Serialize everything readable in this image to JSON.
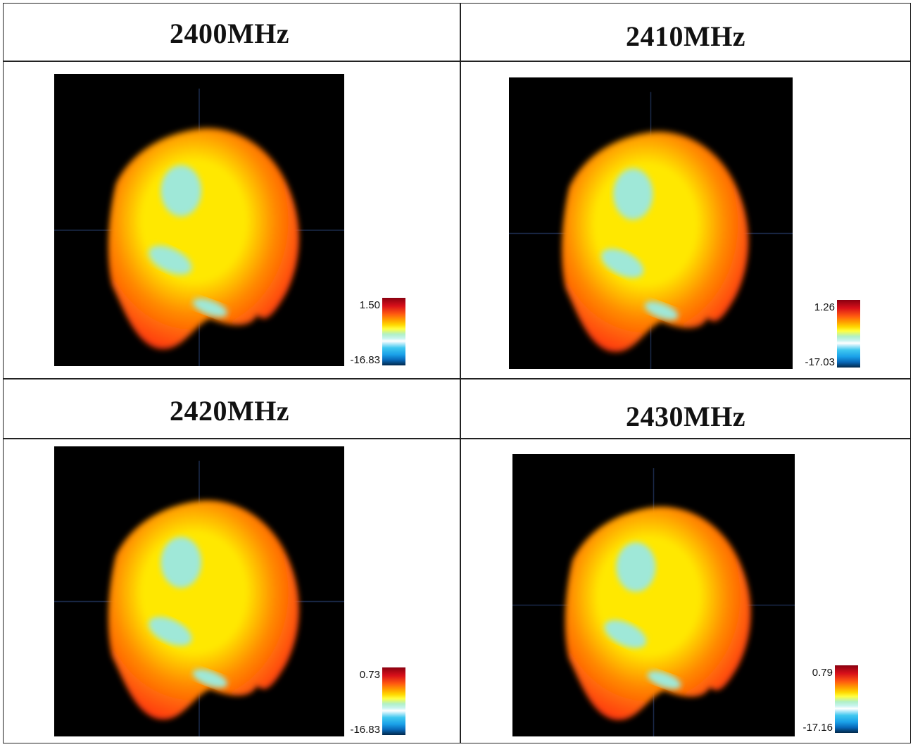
{
  "panels": [
    {
      "title": "2400MHz",
      "max": "1.50",
      "min": "-16.83"
    },
    {
      "title": "2410MHz",
      "max": "1.26",
      "min": "-17.03"
    },
    {
      "title": "2420MHz",
      "max": "0.73",
      "min": "-16.83"
    },
    {
      "title": "2430MHz",
      "max": "0.79",
      "min": "-17.16"
    }
  ],
  "colors": {
    "background": "#000000",
    "blob_red": "#ff3a10",
    "blob_orange": "#ff8c00",
    "blob_yellow": "#ffe800",
    "lobe_cyan": "#9fe8d8",
    "grid_line": "#222222"
  }
}
